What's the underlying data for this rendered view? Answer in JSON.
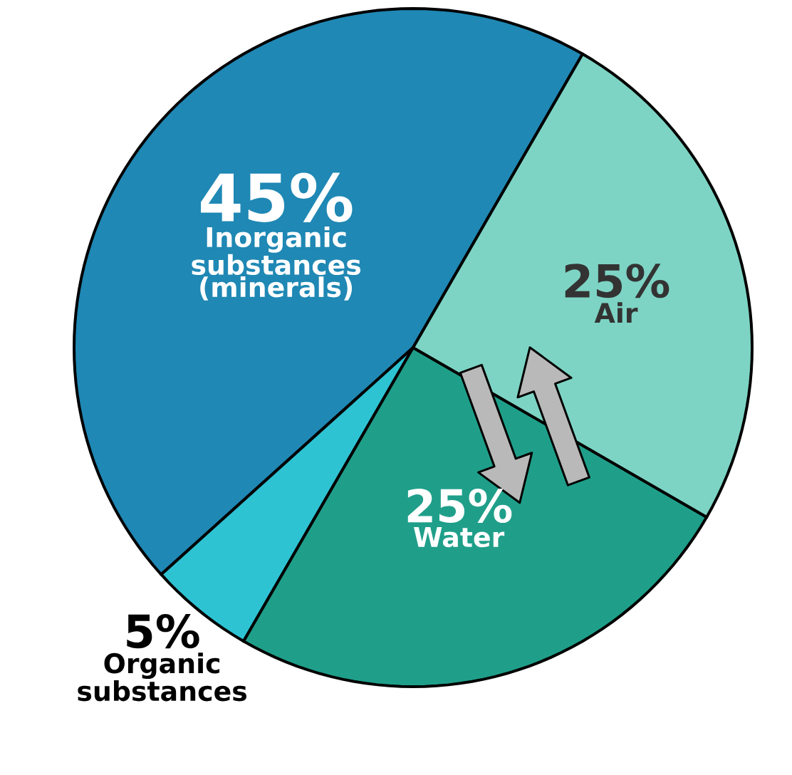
{
  "chart_data": {
    "type": "pie",
    "categories": [
      "Inorganic substances (minerals)",
      "Organic substances",
      "Water",
      "Air"
    ],
    "values": [
      45,
      5,
      25,
      25
    ],
    "colors": [
      "#1f88b4",
      "#2ec3d3",
      "#1f9f8a",
      "#7dd4c4"
    ],
    "value_labels": [
      "45%",
      "5%",
      "25%",
      "25%"
    ]
  }
}
